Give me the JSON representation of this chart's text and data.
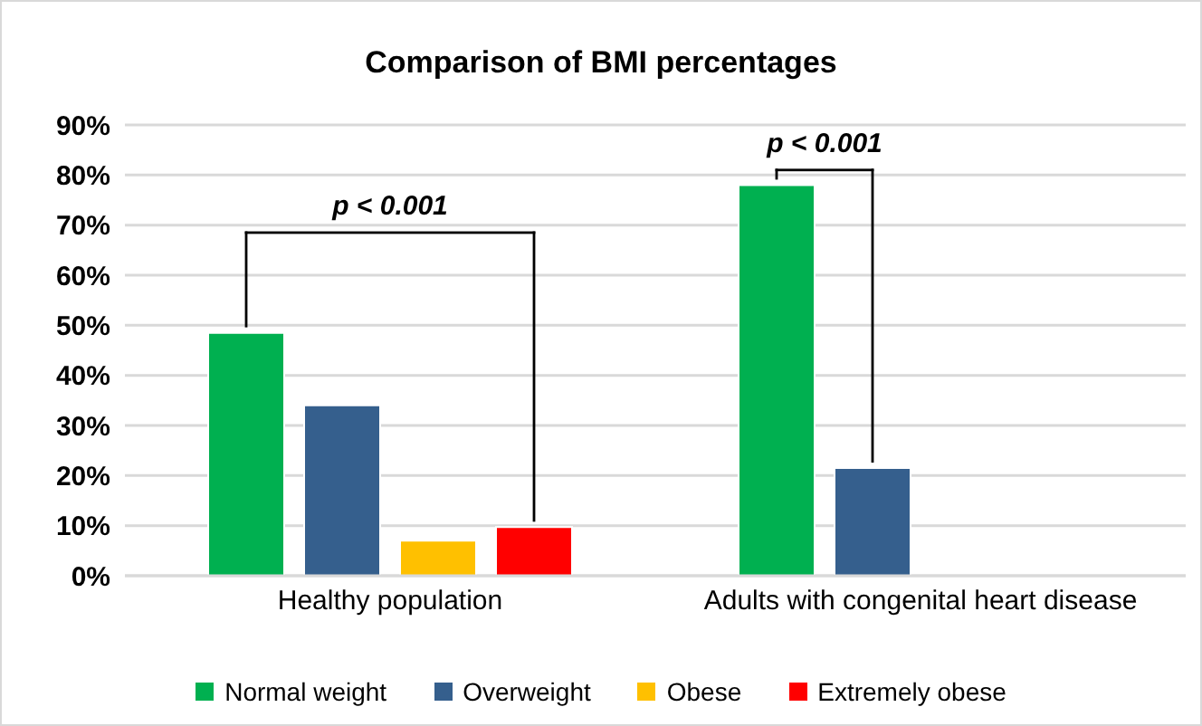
{
  "chart_data": {
    "type": "bar",
    "title": "Comparison of BMI percentages",
    "categories": [
      "Healthy population",
      "Adults with congenital heart disease"
    ],
    "series": [
      {
        "name": "Normal weight",
        "color": "#00b050",
        "values": [
          48.5,
          78
        ]
      },
      {
        "name": "Overweight",
        "color": "#355f8d",
        "values": [
          34,
          21.5
        ]
      },
      {
        "name": "Obese",
        "color": "#ffc000",
        "values": [
          7,
          null
        ]
      },
      {
        "name": "Extremely obese",
        "color": "#ff0000",
        "values": [
          9.7,
          null
        ]
      }
    ],
    "ylim": [
      0,
      90
    ],
    "yticks": [
      {
        "value": 0,
        "label": "0%"
      },
      {
        "value": 10,
        "label": "10%"
      },
      {
        "value": 20,
        "label": "20%"
      },
      {
        "value": 30,
        "label": "30%"
      },
      {
        "value": 40,
        "label": "40%"
      },
      {
        "value": 50,
        "label": "50%"
      },
      {
        "value": 60,
        "label": "60%"
      },
      {
        "value": 70,
        "label": "70%"
      },
      {
        "value": 80,
        "label": "80%"
      },
      {
        "value": 90,
        "label": "90%"
      }
    ],
    "grid": "y",
    "legend": "bottom",
    "annotations": [
      "p < 0.001",
      "p < 0.001"
    ]
  }
}
